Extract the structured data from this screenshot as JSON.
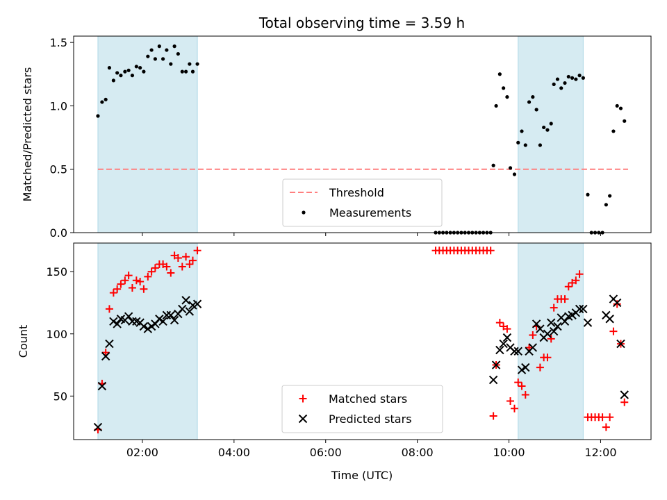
{
  "figure": {
    "title": "Total observing time = 3.59 h",
    "xlabel": "Time (UTC)"
  },
  "chart_data": [
    {
      "type": "scatter",
      "panel": "top",
      "ylabel": "Matched/Predicted stars",
      "xlim": [
        0.5,
        13.1
      ],
      "ylim": [
        0,
        1.55
      ],
      "x_ticks": [
        2,
        4,
        6,
        8,
        10,
        12
      ],
      "x_tick_labels": [
        "02:00",
        "04:00",
        "06:00",
        "08:00",
        "10:00",
        "12:00"
      ],
      "y_ticks": [
        0.0,
        0.5,
        1.0,
        1.5
      ],
      "y_tick_labels": [
        "0.0",
        "0.5",
        "1.0",
        "1.5"
      ],
      "shaded_ranges": [
        [
          1.03,
          3.2
        ],
        [
          10.2,
          11.62
        ]
      ],
      "threshold": {
        "name": "Threshold",
        "y": 0.5,
        "x_range": [
          1.03,
          12.6
        ],
        "color": "#ff7f7f"
      },
      "series": [
        {
          "name": "Measurements",
          "color": "#000000",
          "points": [
            [
              1.03,
              0.92
            ],
            [
              1.12,
              1.03
            ],
            [
              1.2,
              1.05
            ],
            [
              1.28,
              1.3
            ],
            [
              1.37,
              1.2
            ],
            [
              1.45,
              1.26
            ],
            [
              1.53,
              1.24
            ],
            [
              1.62,
              1.27
            ],
            [
              1.7,
              1.28
            ],
            [
              1.78,
              1.24
            ],
            [
              1.87,
              1.31
            ],
            [
              1.95,
              1.3
            ],
            [
              2.03,
              1.27
            ],
            [
              2.12,
              1.39
            ],
            [
              2.2,
              1.44
            ],
            [
              2.28,
              1.37
            ],
            [
              2.37,
              1.47
            ],
            [
              2.45,
              1.37
            ],
            [
              2.53,
              1.44
            ],
            [
              2.62,
              1.33
            ],
            [
              2.7,
              1.47
            ],
            [
              2.78,
              1.41
            ],
            [
              2.87,
              1.27
            ],
            [
              2.95,
              1.27
            ],
            [
              3.03,
              1.33
            ],
            [
              3.1,
              1.27
            ],
            [
              3.2,
              1.33
            ],
            [
              8.4,
              0.0
            ],
            [
              8.48,
              0.0
            ],
            [
              8.56,
              0.0
            ],
            [
              8.64,
              0.0
            ],
            [
              8.72,
              0.0
            ],
            [
              8.8,
              0.0
            ],
            [
              8.88,
              0.0
            ],
            [
              8.96,
              0.0
            ],
            [
              9.04,
              0.0
            ],
            [
              9.12,
              0.0
            ],
            [
              9.2,
              0.0
            ],
            [
              9.28,
              0.0
            ],
            [
              9.36,
              0.0
            ],
            [
              9.44,
              0.0
            ],
            [
              9.52,
              0.0
            ],
            [
              9.6,
              0.0
            ],
            [
              9.66,
              0.53
            ],
            [
              9.72,
              1.0
            ],
            [
              9.8,
              1.25
            ],
            [
              9.88,
              1.14
            ],
            [
              9.96,
              1.07
            ],
            [
              10.03,
              0.51
            ],
            [
              10.12,
              0.46
            ],
            [
              10.2,
              0.71
            ],
            [
              10.28,
              0.8
            ],
            [
              10.36,
              0.69
            ],
            [
              10.44,
              1.03
            ],
            [
              10.52,
              1.07
            ],
            [
              10.6,
              0.97
            ],
            [
              10.68,
              0.69
            ],
            [
              10.76,
              0.83
            ],
            [
              10.84,
              0.81
            ],
            [
              10.92,
              0.86
            ],
            [
              10.98,
              1.17
            ],
            [
              11.06,
              1.21
            ],
            [
              11.14,
              1.14
            ],
            [
              11.22,
              1.18
            ],
            [
              11.3,
              1.23
            ],
            [
              11.38,
              1.22
            ],
            [
              11.46,
              1.21
            ],
            [
              11.54,
              1.24
            ],
            [
              11.62,
              1.22
            ],
            [
              11.72,
              0.3
            ],
            [
              11.8,
              0.0
            ],
            [
              11.88,
              0.0
            ],
            [
              11.96,
              0.0
            ],
            [
              12.04,
              0.0
            ],
            [
              12.12,
              0.22
            ],
            [
              12.2,
              0.29
            ],
            [
              12.28,
              0.8
            ],
            [
              12.36,
              1.0
            ],
            [
              12.44,
              0.98
            ],
            [
              12.52,
              0.88
            ]
          ]
        }
      ],
      "legend": {
        "placement": "lower-center",
        "entries": [
          "Threshold",
          "Measurements"
        ]
      }
    },
    {
      "type": "scatter",
      "panel": "bottom",
      "ylabel": "Count",
      "xlim": [
        0.5,
        13.1
      ],
      "ylim": [
        15,
        173
      ],
      "x_ticks": [
        2,
        4,
        6,
        8,
        10,
        12
      ],
      "x_tick_labels": [
        "02:00",
        "04:00",
        "06:00",
        "08:00",
        "10:00",
        "12:00"
      ],
      "y_ticks": [
        50,
        100,
        150
      ],
      "y_tick_labels": [
        "50",
        "100",
        "150"
      ],
      "shaded_ranges": [
        [
          1.03,
          3.2
        ],
        [
          10.2,
          11.62
        ]
      ],
      "series": [
        {
          "name": "Matched stars",
          "marker": "plus",
          "color": "#ff0000",
          "points": [
            [
              1.03,
              23
            ],
            [
              1.12,
              60
            ],
            [
              1.2,
              85
            ],
            [
              1.28,
              120
            ],
            [
              1.37,
              133
            ],
            [
              1.45,
              136
            ],
            [
              1.53,
              140
            ],
            [
              1.62,
              143
            ],
            [
              1.7,
              147
            ],
            [
              1.78,
              137
            ],
            [
              1.87,
              143
            ],
            [
              1.95,
              142
            ],
            [
              2.03,
              136
            ],
            [
              2.12,
              146
            ],
            [
              2.2,
              150
            ],
            [
              2.28,
              153
            ],
            [
              2.37,
              156
            ],
            [
              2.45,
              156
            ],
            [
              2.53,
              154
            ],
            [
              2.62,
              149
            ],
            [
              2.7,
              163
            ],
            [
              2.78,
              161
            ],
            [
              2.87,
              154
            ],
            [
              2.95,
              162
            ],
            [
              3.03,
              156
            ],
            [
              3.1,
              159
            ],
            [
              3.2,
              167
            ],
            [
              8.4,
              167
            ],
            [
              8.48,
              167
            ],
            [
              8.56,
              167
            ],
            [
              8.64,
              167
            ],
            [
              8.72,
              167
            ],
            [
              8.8,
              167
            ],
            [
              8.88,
              167
            ],
            [
              8.96,
              167
            ],
            [
              9.04,
              167
            ],
            [
              9.12,
              167
            ],
            [
              9.2,
              167
            ],
            [
              9.28,
              167
            ],
            [
              9.36,
              167
            ],
            [
              9.44,
              167
            ],
            [
              9.52,
              167
            ],
            [
              9.6,
              167
            ],
            [
              9.66,
              34
            ],
            [
              9.72,
              75
            ],
            [
              9.8,
              109
            ],
            [
              9.88,
              106
            ],
            [
              9.96,
              104
            ],
            [
              10.03,
              46
            ],
            [
              10.12,
              40
            ],
            [
              10.2,
              61
            ],
            [
              10.28,
              58
            ],
            [
              10.36,
              51
            ],
            [
              10.44,
              89
            ],
            [
              10.52,
              99
            ],
            [
              10.6,
              106
            ],
            [
              10.68,
              73
            ],
            [
              10.76,
              81
            ],
            [
              10.84,
              81
            ],
            [
              10.92,
              96
            ],
            [
              10.98,
              121
            ],
            [
              11.06,
              128
            ],
            [
              11.14,
              128
            ],
            [
              11.22,
              128
            ],
            [
              11.3,
              138
            ],
            [
              11.38,
              141
            ],
            [
              11.46,
              143
            ],
            [
              11.54,
              148
            ],
            [
              11.72,
              33
            ],
            [
              11.8,
              33
            ],
            [
              11.88,
              33
            ],
            [
              11.96,
              33
            ],
            [
              12.04,
              33
            ],
            [
              12.12,
              25
            ],
            [
              12.2,
              33
            ],
            [
              12.28,
              102
            ],
            [
              12.36,
              124
            ],
            [
              12.44,
              92
            ],
            [
              12.52,
              45
            ]
          ]
        },
        {
          "name": "Predicted stars",
          "marker": "x",
          "color": "#000000",
          "points": [
            [
              1.03,
              25
            ],
            [
              1.12,
              58
            ],
            [
              1.2,
              82
            ],
            [
              1.28,
              92
            ],
            [
              1.37,
              110
            ],
            [
              1.45,
              108
            ],
            [
              1.53,
              112
            ],
            [
              1.62,
              111
            ],
            [
              1.7,
              114
            ],
            [
              1.78,
              110
            ],
            [
              1.87,
              110
            ],
            [
              1.95,
              109
            ],
            [
              2.03,
              106
            ],
            [
              2.12,
              104
            ],
            [
              2.2,
              106
            ],
            [
              2.28,
              108
            ],
            [
              2.37,
              112
            ],
            [
              2.45,
              110
            ],
            [
              2.53,
              115
            ],
            [
              2.62,
              115
            ],
            [
              2.7,
              111
            ],
            [
              2.78,
              116
            ],
            [
              2.87,
              120
            ],
            [
              2.95,
              127
            ],
            [
              3.03,
              118
            ],
            [
              3.1,
              123
            ],
            [
              3.2,
              124
            ],
            [
              9.66,
              63
            ],
            [
              9.72,
              75
            ],
            [
              9.8,
              87
            ],
            [
              9.88,
              92
            ],
            [
              9.96,
              97
            ],
            [
              10.03,
              89
            ],
            [
              10.12,
              86
            ],
            [
              10.2,
              86
            ],
            [
              10.28,
              71
            ],
            [
              10.36,
              73
            ],
            [
              10.44,
              86
            ],
            [
              10.52,
              89
            ],
            [
              10.6,
              108
            ],
            [
              10.68,
              104
            ],
            [
              10.76,
              97
            ],
            [
              10.84,
              100
            ],
            [
              10.92,
              109
            ],
            [
              10.98,
              102
            ],
            [
              11.06,
              106
            ],
            [
              11.14,
              113
            ],
            [
              11.22,
              110
            ],
            [
              11.3,
              114
            ],
            [
              11.38,
              115
            ],
            [
              11.46,
              117
            ],
            [
              11.54,
              120
            ],
            [
              11.62,
              120
            ],
            [
              11.72,
              109
            ],
            [
              12.12,
              115
            ],
            [
              12.2,
              112
            ],
            [
              12.28,
              128
            ],
            [
              12.36,
              125
            ],
            [
              12.44,
              92
            ],
            [
              12.52,
              51
            ]
          ]
        }
      ],
      "legend": {
        "placement": "lower-center",
        "entries": [
          "Matched stars",
          "Predicted stars"
        ]
      }
    }
  ]
}
